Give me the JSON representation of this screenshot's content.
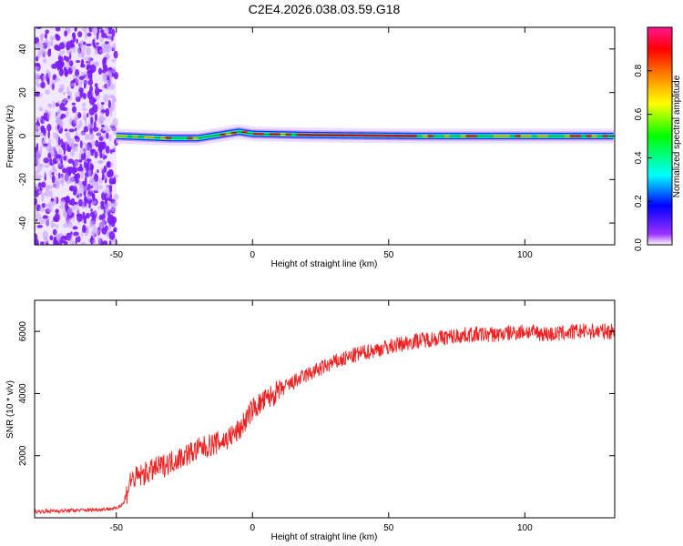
{
  "page": {
    "title": "C2E4.2026.038.03.59.G18"
  },
  "chart_data": [
    {
      "type": "heatmap",
      "xlabel": "Height of straight line (km)",
      "ylabel": "Frequency (Hz)",
      "xlim": [
        -80,
        133
      ],
      "ylim": [
        -50,
        50
      ],
      "xticks": [
        -50,
        0,
        50,
        100
      ],
      "yticks": [
        -40,
        -20,
        0,
        20,
        40
      ],
      "colorbar": {
        "label": "Normalized spectral amplitude",
        "range": [
          0,
          1
        ],
        "ticks": [
          0.0,
          0.2,
          0.4,
          0.6,
          0.8
        ],
        "tick_labels": [
          "0.0",
          "0.2",
          "0.4",
          "0.6",
          "0.8"
        ],
        "colormap": [
          "#ffffff",
          "#9b30ff",
          "#0000ff",
          "#00ffff",
          "#00ff00",
          "#ffff00",
          "#ff8000",
          "#ff0000",
          "#ff1493"
        ]
      },
      "noise_region_x": [
        -80,
        -50
      ],
      "signal": {
        "center_freq_hz": [
          {
            "x": -50,
            "f": 0
          },
          {
            "x": -30,
            "f": -1
          },
          {
            "x": -20,
            "f": -1
          },
          {
            "x": -10,
            "f": 1
          },
          {
            "x": -5,
            "f": 2
          },
          {
            "x": 0,
            "f": 1
          },
          {
            "x": 20,
            "f": 0.5
          },
          {
            "x": 60,
            "f": 0
          },
          {
            "x": 100,
            "f": 0
          },
          {
            "x": 133,
            "f": 0
          }
        ]
      }
    },
    {
      "type": "line",
      "xlabel": "Height of straight line (km)",
      "ylabel": "SNR (10 * v/v)",
      "xlim": [
        -80,
        133
      ],
      "ylim": [
        0,
        7000
      ],
      "xticks": [
        -50,
        0,
        50,
        100
      ],
      "yticks": [
        2000,
        4000,
        6000
      ],
      "series": [
        {
          "color": "#ee2222",
          "x": [
            -80,
            -60,
            -50,
            -47,
            -45,
            -40,
            -30,
            -20,
            -10,
            -5,
            0,
            10,
            20,
            30,
            40,
            50,
            60,
            70,
            80,
            90,
            100,
            110,
            120,
            133
          ],
          "y": [
            200,
            250,
            300,
            500,
            1200,
            1400,
            1800,
            2200,
            2500,
            2800,
            3500,
            4100,
            4600,
            5000,
            5300,
            5500,
            5700,
            5800,
            5900,
            5900,
            6000,
            5900,
            6000,
            6000
          ]
        }
      ]
    }
  ]
}
